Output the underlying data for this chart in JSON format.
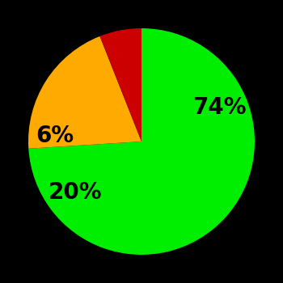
{
  "slices": [
    74,
    20,
    6
  ],
  "labels": [
    "74%",
    "20%",
    "6%"
  ],
  "colors": [
    "#00ee00",
    "#ffaa00",
    "#cc0000"
  ],
  "background_color": "#000000",
  "startangle": 90,
  "counterclock": false,
  "text_color": "#000000",
  "font_size": 20,
  "font_weight": "bold",
  "labeldistance": 0.65
}
